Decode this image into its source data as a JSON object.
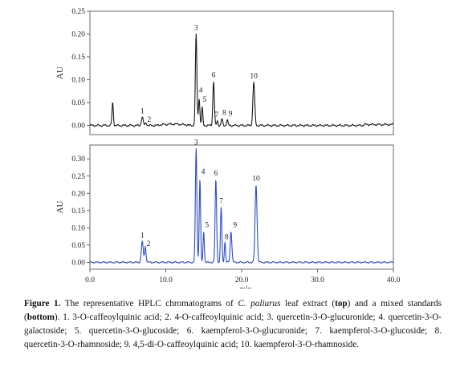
{
  "chart_data": [
    {
      "type": "line",
      "panel": "top",
      "ylabel": "AU",
      "xlim": [
        0,
        40
      ],
      "ylim": [
        -0.02,
        0.25
      ],
      "yticks": [
        0.0,
        0.05,
        0.1,
        0.15,
        0.2,
        0.25
      ],
      "ytick_labels": [
        "0.00",
        "0.05",
        "0.10",
        "0.15",
        "0.20",
        "0.25"
      ],
      "line_color": "#1a1a1a",
      "baseline": 0.0,
      "peaks": [
        {
          "label": "",
          "x": 3.0,
          "y": 0.05,
          "w": 0.09
        },
        {
          "label": "1",
          "x": 6.9,
          "y": 0.018,
          "w": 0.12
        },
        {
          "label": "2",
          "x": 7.4,
          "y": 0.006,
          "w": 0.1
        },
        {
          "label": "3",
          "x": 14.0,
          "y": 0.2,
          "w": 0.1
        },
        {
          "label": "4",
          "x": 14.4,
          "y": 0.06,
          "w": 0.09
        },
        {
          "label": "5",
          "x": 14.8,
          "y": 0.04,
          "w": 0.08
        },
        {
          "label": "6",
          "x": 16.3,
          "y": 0.097,
          "w": 0.1
        },
        {
          "label": "7",
          "x": 16.8,
          "y": 0.01,
          "w": 0.08
        },
        {
          "label": "8",
          "x": 17.4,
          "y": 0.014,
          "w": 0.09
        },
        {
          "label": "9",
          "x": 18.1,
          "y": 0.012,
          "w": 0.09
        },
        {
          "label": "10",
          "x": 21.6,
          "y": 0.095,
          "w": 0.12
        }
      ]
    },
    {
      "type": "line",
      "panel": "bottom",
      "ylabel": "AU",
      "xlabel": "min",
      "xlim": [
        0,
        40
      ],
      "ylim": [
        -0.02,
        0.34
      ],
      "yticks": [
        0.0,
        0.05,
        0.1,
        0.15,
        0.2,
        0.25,
        0.3
      ],
      "ytick_labels": [
        "0.00",
        "0.05",
        "0.10",
        "0.15",
        "0.20",
        "0.25",
        "0.30"
      ],
      "xticks": [
        0,
        10,
        20,
        30,
        40
      ],
      "xtick_labels": [
        "0.0",
        "10.0",
        "20.0",
        "30.0",
        "40.0"
      ],
      "line_color": "#2b4fc4",
      "baseline": 0.0,
      "peaks": [
        {
          "label": "1",
          "x": 6.9,
          "y": 0.06,
          "w": 0.12
        },
        {
          "label": "2",
          "x": 7.3,
          "y": 0.045,
          "w": 0.1
        },
        {
          "label": "3",
          "x": 14.0,
          "y": 0.33,
          "w": 0.1
        },
        {
          "label": "4",
          "x": 14.5,
          "y": 0.24,
          "w": 0.09
        },
        {
          "label": "5",
          "x": 15.0,
          "y": 0.09,
          "w": 0.08
        },
        {
          "label": "6",
          "x": 16.6,
          "y": 0.24,
          "w": 0.1
        },
        {
          "label": "7",
          "x": 17.3,
          "y": 0.16,
          "w": 0.09
        },
        {
          "label": "8",
          "x": 17.8,
          "y": 0.06,
          "w": 0.08
        },
        {
          "label": "9",
          "x": 18.6,
          "y": 0.09,
          "w": 0.11
        },
        {
          "label": "10",
          "x": 21.9,
          "y": 0.225,
          "w": 0.13
        }
      ]
    }
  ],
  "caption": {
    "fig_label": "Figure 1.",
    "t1": " The representative HPLC chromatograms of ",
    "species_a": "C. ",
    "species_b": "paliurus",
    "t2": " leaf extract (",
    "top_word": "top",
    "t3": ") and a mixed standards (",
    "bottom_word": "bottom",
    "t4": "). 1. 3-O-caffeoylquinic acid; 2. 4-O-caffeoylquinic acid; 3. quercetin-3-O-glucuronide; 4. quercetin-3-O-galactoside; 5. quercetin-3-O-glucoside; 6. kaempferol-3-O-glucuronide; 7. kaempferol-3-O-glucoside; 8. quercetin-3-O-rhamnoside; 9. 4,5-di-O-caffeoylquinic acid; 10. kaempferol-3-O-rhamnoside."
  }
}
